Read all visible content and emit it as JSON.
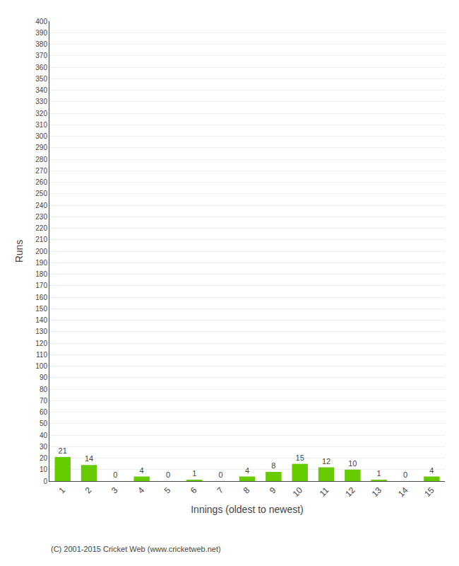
{
  "chart_data": {
    "type": "bar",
    "xlabel": "Innings (oldest to newest)",
    "ylabel": "Runs",
    "categories": [
      "1",
      "2",
      "3",
      "4",
      "5",
      "6",
      "7",
      "8",
      "9",
      "10",
      "11",
      "12",
      "13",
      "14",
      "15"
    ],
    "values": [
      21,
      14,
      0,
      4,
      0,
      1,
      0,
      4,
      8,
      15,
      12,
      10,
      1,
      0,
      4
    ],
    "color": "#66cc00",
    "ylim": [
      0,
      400
    ],
    "yticks": [
      0,
      10,
      20,
      30,
      40,
      50,
      60,
      70,
      80,
      90,
      100,
      110,
      120,
      130,
      140,
      150,
      160,
      170,
      180,
      190,
      200,
      210,
      220,
      230,
      240,
      250,
      260,
      270,
      280,
      290,
      300,
      310,
      320,
      330,
      340,
      350,
      360,
      370,
      380,
      390,
      400
    ],
    "grid": true,
    "data_labels": true,
    "annotations": [
      "(C) 2001-2015 Cricket Web (www.cricketweb.net)"
    ]
  }
}
